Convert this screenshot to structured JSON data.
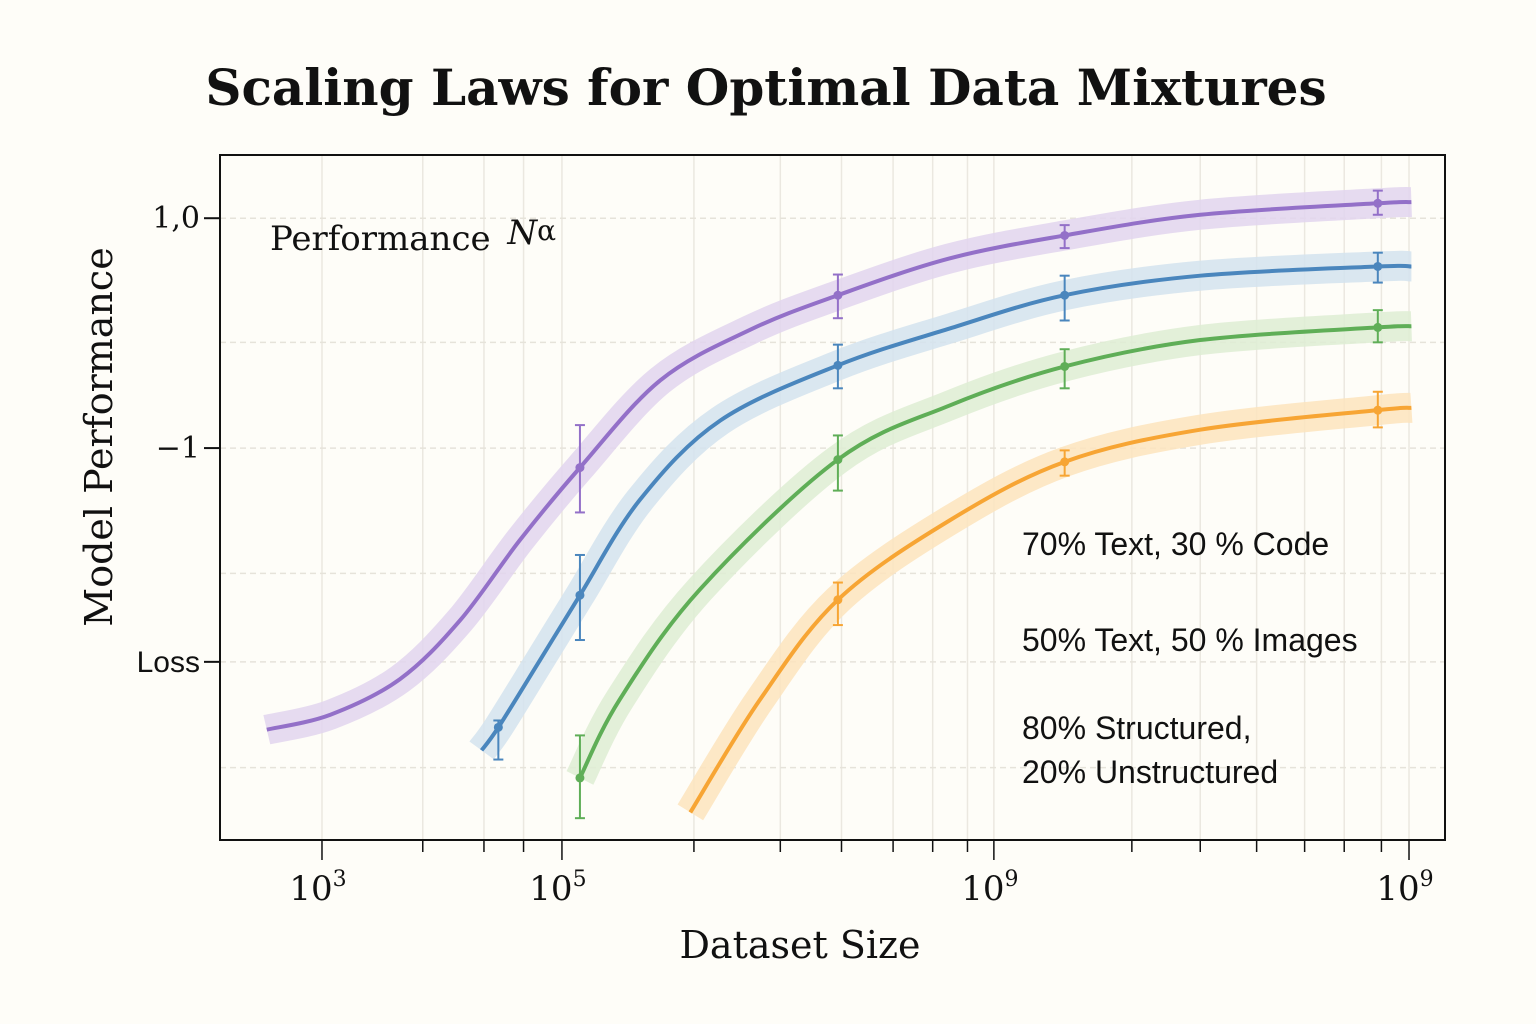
{
  "chart_data": {
    "type": "line",
    "title": "Scaling Laws for Optimal Data Mixtures",
    "xlabel": "Dataset Size",
    "ylabel": "Model Performance",
    "annotation": {
      "text": "Performance ",
      "math": "N",
      "superscript": "α"
    },
    "x_scale": "log",
    "xlim": [
      2.15,
      12.36
    ],
    "ylim": [
      -4.41,
      1.55
    ],
    "grid": true,
    "x_ticks": [
      {
        "value": 3,
        "base": "10",
        "exp": "3"
      },
      {
        "value": 5,
        "base": "10",
        "exp": "5"
      },
      {
        "value": 8.6,
        "base": "10",
        "exp": "9"
      },
      {
        "value": 12.06,
        "base": "10",
        "exp": "9"
      }
    ],
    "x_minor_ticks": [
      3.84,
      4.35,
      4.68,
      6.1,
      6.82,
      7.33,
      7.76,
      8.09,
      8.38,
      9.75,
      10.32,
      10.79,
      11.19,
      11.52,
      11.83
    ],
    "y_ticks": [
      {
        "value": 1.0,
        "label": "1,0"
      },
      {
        "value": -1.0,
        "label": "−1"
      },
      {
        "value": -2.86,
        "label": "Loss"
      }
    ],
    "y_gridlines": [
      1.0,
      -0.08,
      -1.0,
      -2.09,
      -2.86,
      -3.78
    ],
    "legend": {
      "placement": "lower-right",
      "entries": [
        "70% Text, 30 % Code",
        "50% Text, 50 % Images",
        "80% Structured,",
        "20% Unstructured"
      ]
    },
    "series": [
      {
        "color": "#9370c8",
        "band": "#e2d5ee",
        "x": [
          2.54,
          3.07,
          3.65,
          4.15,
          4.65,
          5.15,
          5.82,
          6.57,
          7.3,
          8.23,
          9.19,
          10.32,
          11.8,
          12.08
        ],
        "y": [
          -3.45,
          -3.32,
          -3.01,
          -2.5,
          -1.8,
          -1.17,
          -0.41,
          0.03,
          0.33,
          0.65,
          0.85,
          1.03,
          1.13,
          1.14
        ],
        "errorbars": [
          {
            "x": 5.15,
            "y": -1.17,
            "lo": -1.56,
            "hi": -0.8
          },
          {
            "x": 7.3,
            "y": 0.33,
            "lo": 0.13,
            "hi": 0.51
          },
          {
            "x": 9.19,
            "y": 0.85,
            "lo": 0.74,
            "hi": 0.94
          },
          {
            "x": 11.8,
            "y": 1.13,
            "lo": 1.03,
            "hi": 1.24
          }
        ]
      },
      {
        "color": "#4a86bd",
        "band": "#d3e3ee",
        "x": [
          4.33,
          4.47,
          4.82,
          5.15,
          5.65,
          6.32,
          7.3,
          8.23,
          9.19,
          10.32,
          11.8,
          12.08
        ],
        "y": [
          -3.63,
          -3.43,
          -2.84,
          -2.28,
          -1.45,
          -0.76,
          -0.28,
          0.04,
          0.33,
          0.5,
          0.58,
          0.58
        ],
        "errorbars": [
          {
            "x": 4.47,
            "y": -3.43,
            "lo": -3.71,
            "hi": -3.37
          },
          {
            "x": 5.15,
            "y": -2.28,
            "lo": -2.67,
            "hi": -1.93
          },
          {
            "x": 7.3,
            "y": -0.28,
            "lo": -0.48,
            "hi": -0.1
          },
          {
            "x": 9.19,
            "y": 0.33,
            "lo": 0.11,
            "hi": 0.5
          },
          {
            "x": 11.8,
            "y": 0.58,
            "lo": 0.44,
            "hi": 0.7
          }
        ]
      },
      {
        "color": "#5fae57",
        "band": "#deedd3",
        "x": [
          5.15,
          5.48,
          6.15,
          7.3,
          8.23,
          9.19,
          10.32,
          11.8,
          12.08
        ],
        "y": [
          -3.87,
          -3.19,
          -2.23,
          -1.1,
          -0.63,
          -0.29,
          -0.06,
          0.05,
          0.06
        ],
        "errorbars": [
          {
            "x": 5.15,
            "y": -3.87,
            "lo": -4.22,
            "hi": -3.5
          },
          {
            "x": 7.3,
            "y": -1.1,
            "lo": -1.37,
            "hi": -0.89
          },
          {
            "x": 9.19,
            "y": -0.29,
            "lo": -0.48,
            "hi": -0.14
          },
          {
            "x": 11.8,
            "y": 0.05,
            "lo": -0.08,
            "hi": 0.2
          }
        ]
      },
      {
        "color": "#f7a534",
        "band": "#fde4bd",
        "x": [
          6.07,
          6.65,
          7.3,
          8.23,
          9.19,
          10.32,
          11.8,
          12.08
        ],
        "y": [
          -4.17,
          -3.19,
          -2.32,
          -1.63,
          -1.12,
          -0.84,
          -0.67,
          -0.65
        ],
        "errorbars": [
          {
            "x": 7.3,
            "y": -2.32,
            "lo": -2.54,
            "hi": -2.17
          },
          {
            "x": 9.19,
            "y": -1.12,
            "lo": -1.24,
            "hi": -1.02
          },
          {
            "x": 11.8,
            "y": -0.67,
            "lo": -0.82,
            "hi": -0.51
          }
        ]
      }
    ]
  }
}
